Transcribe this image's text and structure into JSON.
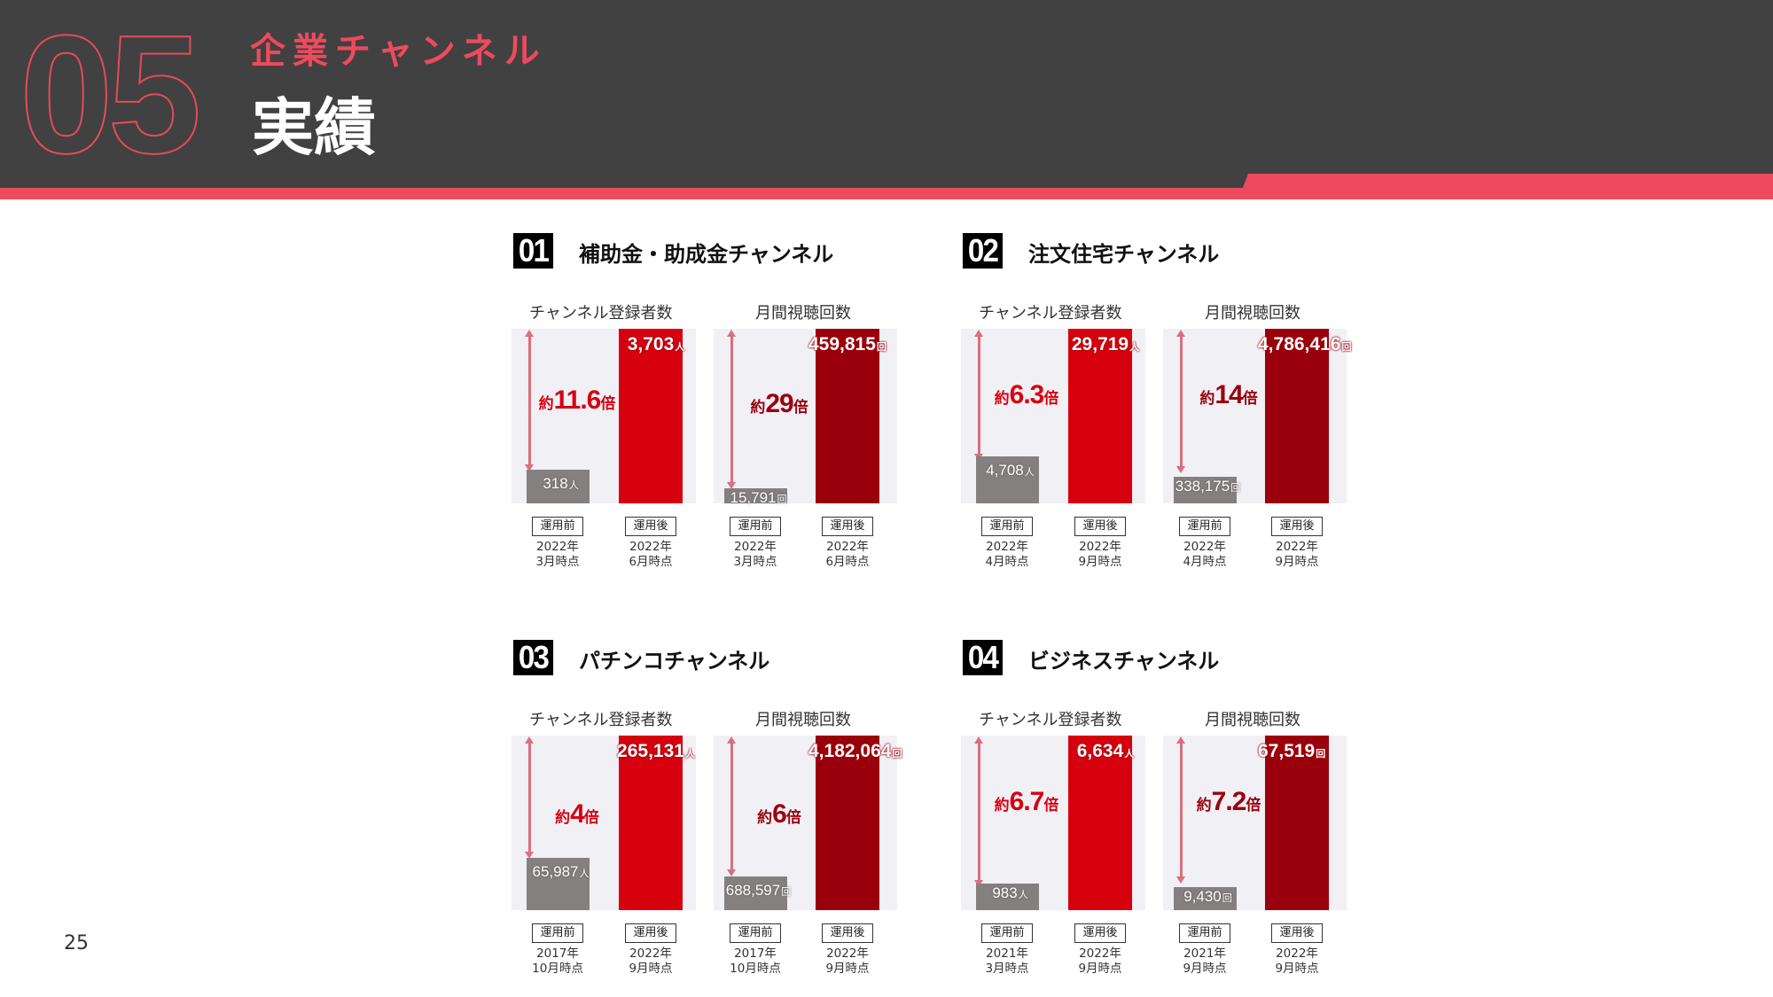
{
  "header": {
    "section_number": "05",
    "section_subtitle": "企業チャンネル",
    "section_title": "実績",
    "colors": {
      "background": "#414141",
      "accent": "#ee4a5d"
    }
  },
  "page_number": "25",
  "common": {
    "metric_subscribers": "チャンネル登録者数",
    "metric_views": "月間視聴回数",
    "before_tag": "運用前",
    "after_tag": "運用後",
    "ratio_prefix": "約",
    "ratio_suffix": "倍",
    "unit_people": "人",
    "unit_times": "回"
  },
  "blocks": [
    {
      "badge": "01",
      "title": "補助金・助成金チャンネル",
      "subscribers": {
        "before": "318",
        "after": "3,703",
        "ratio": "11.6",
        "before_date": [
          "2022年",
          "3月時点"
        ],
        "after_date": [
          "2022年",
          "6月時点"
        ]
      },
      "views": {
        "before": "15,791",
        "after": "459,815",
        "ratio": "29",
        "before_date": [
          "2022年",
          "3月時点"
        ],
        "after_date": [
          "2022年",
          "6月時点"
        ]
      }
    },
    {
      "badge": "02",
      "title": "注文住宅チャンネル",
      "subscribers": {
        "before": "4,708",
        "after": "29,719",
        "ratio": "6.3",
        "before_date": [
          "2022年",
          "4月時点"
        ],
        "after_date": [
          "2022年",
          "9月時点"
        ]
      },
      "views": {
        "before": "338,175",
        "after": "4,786,416",
        "ratio": "14",
        "before_date": [
          "2022年",
          "4月時点"
        ],
        "after_date": [
          "2022年",
          "9月時点"
        ]
      }
    },
    {
      "badge": "03",
      "title": "パチンコチャンネル",
      "subscribers": {
        "before": "65,987",
        "after": "265,131",
        "ratio": "4",
        "before_date": [
          "2017年",
          "10月時点"
        ],
        "after_date": [
          "2022年",
          "9月時点"
        ]
      },
      "views": {
        "before": "688,597",
        "after": "4,182,064",
        "ratio": "6",
        "before_date": [
          "2017年",
          "10月時点"
        ],
        "after_date": [
          "2022年",
          "9月時点"
        ]
      }
    },
    {
      "badge": "04",
      "title": "ビジネスチャンネル",
      "subscribers": {
        "before": "983",
        "after": "6,634",
        "ratio": "6.7",
        "before_date": [
          "2021年",
          "3月時点"
        ],
        "after_date": [
          "2022年",
          "9月時点"
        ]
      },
      "views": {
        "before": "9,430",
        "after": "67,519",
        "ratio": "7.2",
        "before_date": [
          "2021年",
          "9月時点"
        ],
        "after_date": [
          "2022年",
          "9月時点"
        ]
      }
    }
  ],
  "chart_data": [
    {
      "type": "bar",
      "title": "01 補助金・助成金チャンネル — チャンネル登録者数",
      "categories": [
        "運用前 (2022年3月時点)",
        "運用後 (2022年6月時点)"
      ],
      "values": [
        318,
        3703
      ],
      "unit": "人",
      "annotation": "約11.6倍",
      "colors": [
        "#858080",
        "#d7000f"
      ]
    },
    {
      "type": "bar",
      "title": "01 補助金・助成金チャンネル — 月間視聴回数",
      "categories": [
        "運用前 (2022年3月時点)",
        "運用後 (2022年6月時点)"
      ],
      "values": [
        15791,
        459815
      ],
      "unit": "回",
      "annotation": "約29倍",
      "colors": [
        "#858080",
        "#9a000c"
      ]
    },
    {
      "type": "bar",
      "title": "02 注文住宅チャンネル — チャンネル登録者数",
      "categories": [
        "運用前 (2022年4月時点)",
        "運用後 (2022年9月時点)"
      ],
      "values": [
        4708,
        29719
      ],
      "unit": "人",
      "annotation": "約6.3倍",
      "colors": [
        "#858080",
        "#d7000f"
      ]
    },
    {
      "type": "bar",
      "title": "02 注文住宅チャンネル — 月間視聴回数",
      "categories": [
        "運用前 (2022年4月時点)",
        "運用後 (2022年9月時点)"
      ],
      "values": [
        338175,
        4786416
      ],
      "unit": "回",
      "annotation": "約14倍",
      "colors": [
        "#858080",
        "#9a000c"
      ]
    },
    {
      "type": "bar",
      "title": "03 パチンコチャンネル — チャンネル登録者数",
      "categories": [
        "運用前 (2017年10月時点)",
        "運用後 (2022年9月時点)"
      ],
      "values": [
        65987,
        265131
      ],
      "unit": "人",
      "annotation": "約4倍",
      "colors": [
        "#858080",
        "#d7000f"
      ]
    },
    {
      "type": "bar",
      "title": "03 パチンコチャンネル — 月間視聴回数",
      "categories": [
        "運用前 (2017年10月時点)",
        "運用後 (2022年9月時点)"
      ],
      "values": [
        688597,
        4182064
      ],
      "unit": "回",
      "annotation": "約6倍",
      "colors": [
        "#858080",
        "#9a000c"
      ]
    },
    {
      "type": "bar",
      "title": "04 ビジネスチャンネル — チャンネル登録者数",
      "categories": [
        "運用前 (2021年3月時点)",
        "運用後 (2022年9月時点)"
      ],
      "values": [
        983,
        6634
      ],
      "unit": "人",
      "annotation": "約6.7倍",
      "colors": [
        "#858080",
        "#d7000f"
      ]
    },
    {
      "type": "bar",
      "title": "04 ビジネスチャンネル — 月間視聴回数",
      "categories": [
        "運用前 (2021年9月時点)",
        "運用後 (2022年9月時点)"
      ],
      "values": [
        9430,
        67519
      ],
      "unit": "回",
      "annotation": "約7.2倍",
      "colors": [
        "#858080",
        "#9a000c"
      ]
    }
  ]
}
